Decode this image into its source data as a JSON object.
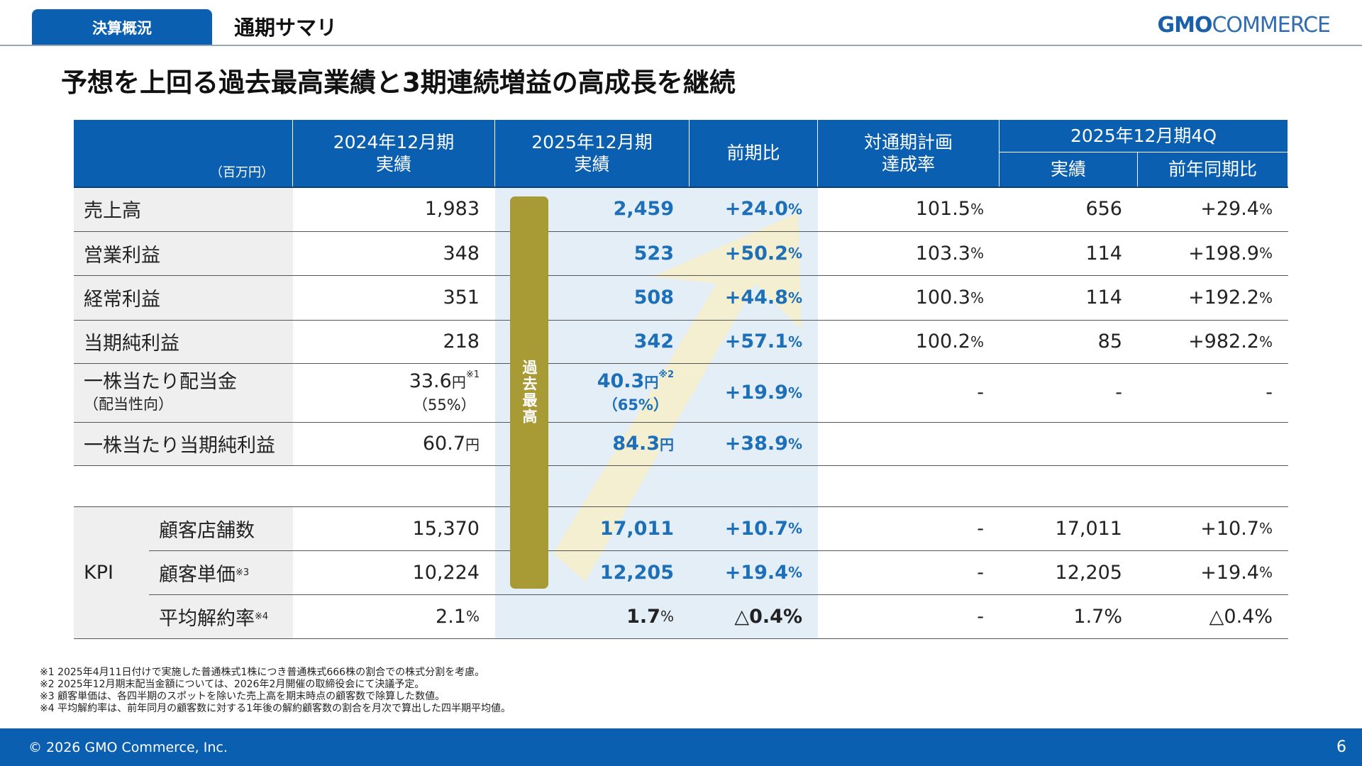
{
  "header": {
    "tab": "決算概況",
    "section": "通期サマリ",
    "logo": "GMO COMMERCE"
  },
  "title": "予想を上回る過去最高業績と3期連続増益の高成長を継続",
  "table": {
    "unit": "（百万円）",
    "columns": [
      "2024年12月期\n実績",
      "2025年12月期\n実績",
      "前期比",
      "対通期計画\n達成率"
    ],
    "col_2024": [
      "2024年12月期",
      "実績"
    ],
    "col_2025": [
      "2025年12月期",
      "実績"
    ],
    "col_yoy": "前期比",
    "col_plan": [
      "対通期計画",
      "達成率"
    ],
    "col_4q": "2025年12月期4Q",
    "col_4q_actual": "実績",
    "col_4q_yoy": "前年同期比",
    "record_badge": "過去最高",
    "rows": [
      {
        "label": "売上高",
        "v2024": "1,983",
        "v2025": "2,459",
        "yoy": "+24.0",
        "plan": "101.5",
        "q4": "656",
        "q4yoy": "+29.4"
      },
      {
        "label": "営業利益",
        "v2024": "348",
        "v2025": "523",
        "yoy": "+50.2",
        "plan": "103.3",
        "q4": "114",
        "q4yoy": "+198.9"
      },
      {
        "label": "経常利益",
        "v2024": "351",
        "v2025": "508",
        "yoy": "+44.8",
        "plan": "100.3",
        "q4": "114",
        "q4yoy": "+192.2"
      },
      {
        "label": "当期純利益",
        "v2024": "218",
        "v2025": "342",
        "yoy": "+57.1",
        "plan": "100.2",
        "q4": "85",
        "q4yoy": "+982.2"
      }
    ],
    "dividend": {
      "label": "一株当たり配当金",
      "sublabel": "（配当性向）",
      "v2024": "33.6",
      "v2024_note": "※1",
      "v2024_ratio": "（55%）",
      "v2025": "40.3",
      "v2025_note": "※2",
      "v2025_ratio": "（65%）",
      "yoy": "+19.9",
      "plan": "-",
      "q4": "-",
      "q4yoy": "-"
    },
    "eps": {
      "label": "一株当たり当期純利益",
      "v2024": "60.7",
      "v2025": "84.3",
      "yoy": "+38.9"
    },
    "kpi_label": "KPI",
    "kpi": [
      {
        "label": "顧客店舗数",
        "note": "",
        "v2024": "15,370",
        "v2025": "17,011",
        "yoy": "+10.7",
        "plan": "-",
        "q4": "17,011",
        "q4yoy": "+10.7"
      },
      {
        "label": "顧客単価",
        "note": "※3",
        "v2024": "10,224",
        "v2025": "12,205",
        "yoy": "+19.4",
        "plan": "-",
        "q4": "12,205",
        "q4yoy": "+19.4"
      }
    ],
    "churn": {
      "label": "平均解約率",
      "note": "※4",
      "v2024": "2.1",
      "v2025": "1.7",
      "yoy": "△0.4%",
      "plan": "-",
      "q4": "1.7%",
      "q4yoy": "△0.4%"
    },
    "yen": "円",
    "pct": "%"
  },
  "footnotes": [
    "※1 2025年4月11日付けで実施した普通株式1株につき普通株式666株の割合での株式分割を考慮。",
    "※2 2025年12月期末配当金額については、2026年2月開催の取締役会にて決議予定。",
    "※3 顧客単価は、各四半期のスポットを除いた売上高を期末時点の顧客数で除算した数値。",
    "※4 平均解約率は、前年同月の顧客数に対する1年後の解約顧客数の割合を月次で算出した四半期平均値。"
  ],
  "footer": {
    "copyright": "© 2026 GMO Commerce, Inc.",
    "page": "6"
  },
  "colors": {
    "brand": "#0b5fb0",
    "highlight": "#1d6fb8",
    "badge": "#a89a35",
    "column_bg": "#e4eef7"
  }
}
